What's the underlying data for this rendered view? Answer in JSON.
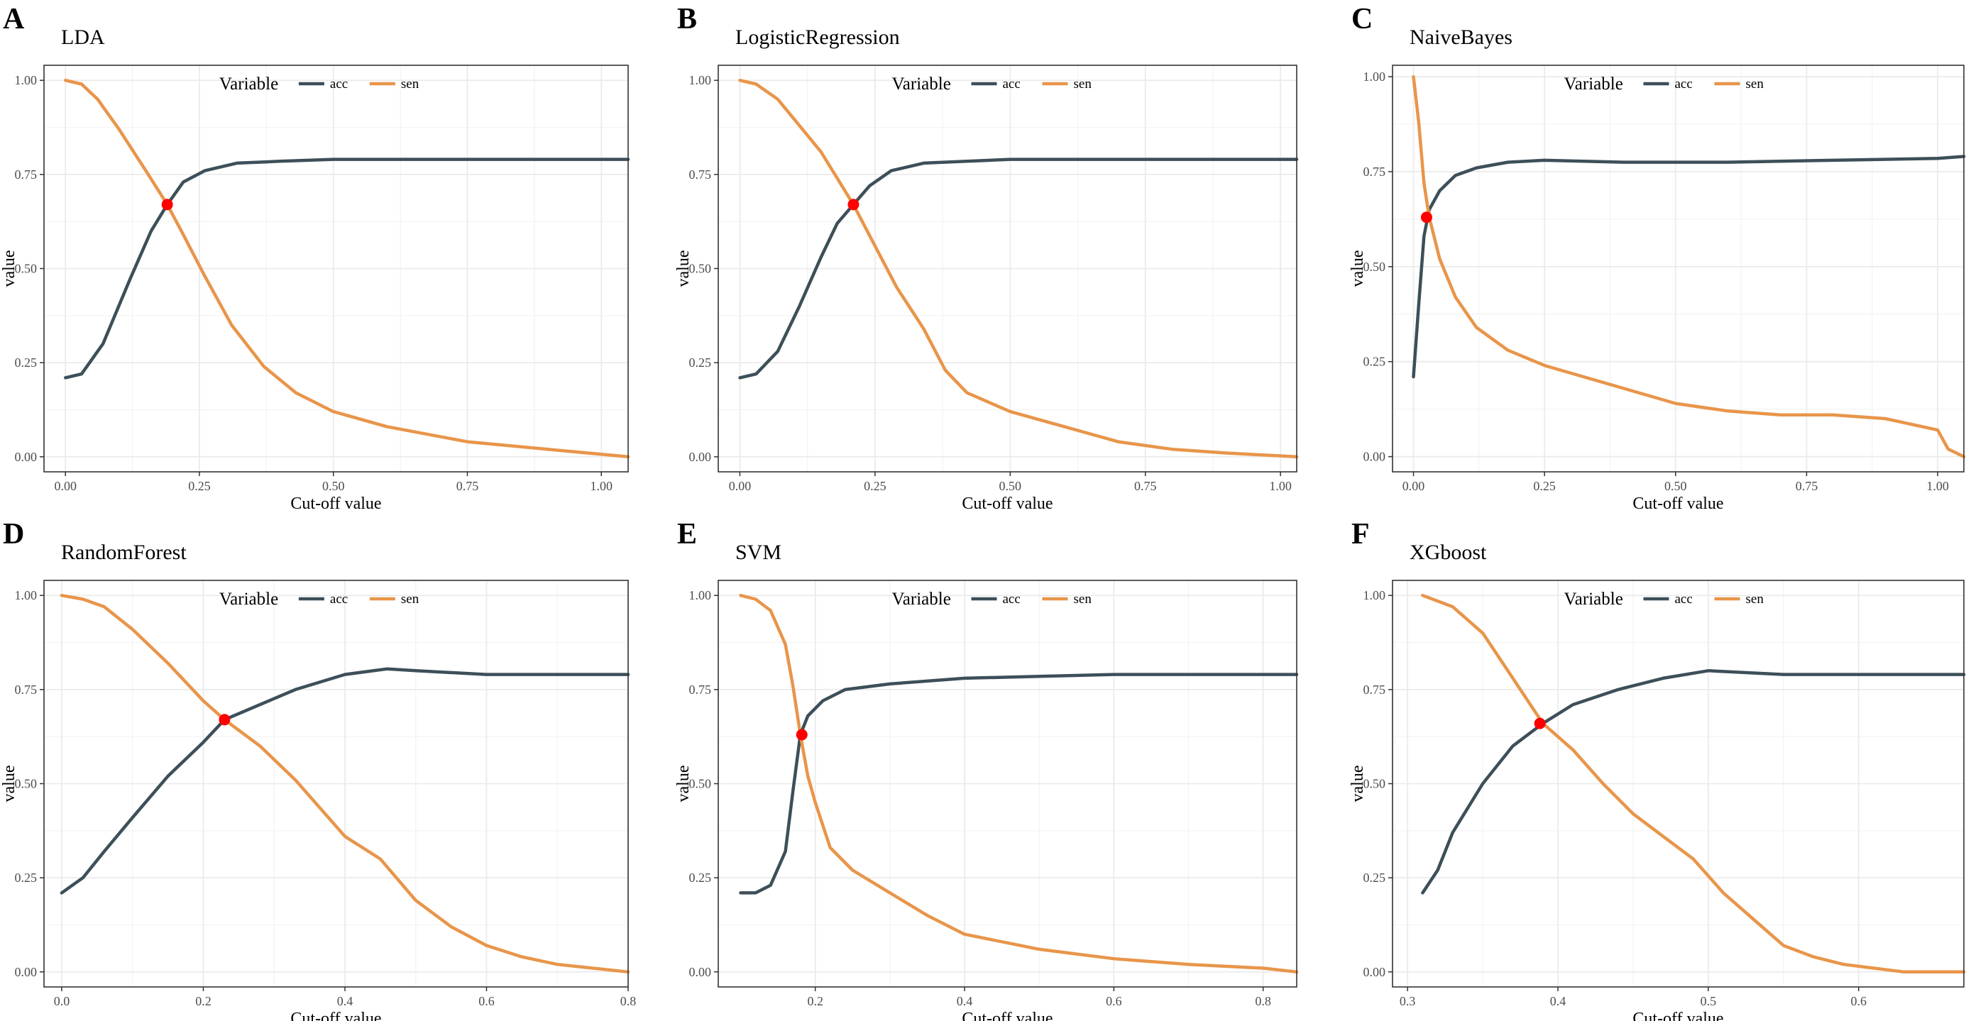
{
  "figure": {
    "colors": {
      "acc": "#3d4f59",
      "sen": "#e8954a",
      "intersection": "#ff0000",
      "panel_border": "#333333",
      "grid": "#ebebeb",
      "text": "#000000"
    },
    "legend": {
      "title": "Variable",
      "labels": [
        "acc",
        "sen"
      ]
    }
  },
  "chart_data": [
    {
      "panel": "A",
      "type": "line",
      "title": "LDA",
      "xlabel": "Cut-off value",
      "ylabel": "value",
      "xlim": [
        -0.04,
        1.05
      ],
      "ylim": [
        -0.04,
        1.04
      ],
      "xticks": [
        0,
        0.25,
        0.5,
        0.75,
        1.0
      ],
      "xtick_labels": [
        "0.00",
        "0.25",
        "0.50",
        "0.75",
        "1.00"
      ],
      "yticks": [
        0,
        0.25,
        0.5,
        0.75,
        1.0
      ],
      "ytick_labels": [
        "0.00",
        "0.25",
        "0.50",
        "0.75",
        "1.00"
      ],
      "grid": true,
      "legend_position": "top-center",
      "series": [
        {
          "name": "acc",
          "x": [
            0,
            0.03,
            0.07,
            0.12,
            0.16,
            0.19,
            0.22,
            0.26,
            0.32,
            0.4,
            0.5,
            0.6,
            0.75,
            0.9,
            1.05
          ],
          "values": [
            0.21,
            0.22,
            0.3,
            0.47,
            0.6,
            0.67,
            0.73,
            0.76,
            0.78,
            0.785,
            0.79,
            0.79,
            0.79,
            0.79,
            0.79
          ]
        },
        {
          "name": "sen",
          "x": [
            0,
            0.03,
            0.06,
            0.1,
            0.15,
            0.19,
            0.22,
            0.26,
            0.31,
            0.37,
            0.43,
            0.5,
            0.6,
            0.75,
            0.9,
            1.05
          ],
          "values": [
            1.0,
            0.99,
            0.95,
            0.87,
            0.76,
            0.67,
            0.59,
            0.48,
            0.35,
            0.24,
            0.17,
            0.12,
            0.08,
            0.04,
            0.02,
            0.0
          ]
        }
      ],
      "intersection": {
        "x": 0.19,
        "y": 0.67
      }
    },
    {
      "panel": "B",
      "type": "line",
      "title": "LogisticRegression",
      "xlabel": "Cut-off value",
      "ylabel": "value",
      "xlim": [
        -0.04,
        1.03
      ],
      "ylim": [
        -0.04,
        1.04
      ],
      "xticks": [
        0,
        0.25,
        0.5,
        0.75,
        1.0
      ],
      "xtick_labels": [
        "0.00",
        "0.25",
        "0.50",
        "0.75",
        "1.00"
      ],
      "yticks": [
        0,
        0.25,
        0.5,
        0.75,
        1.0
      ],
      "ytick_labels": [
        "0.00",
        "0.25",
        "0.50",
        "0.75",
        "1.00"
      ],
      "grid": true,
      "legend_position": "top-center",
      "series": [
        {
          "name": "acc",
          "x": [
            0,
            0.03,
            0.07,
            0.11,
            0.15,
            0.18,
            0.21,
            0.24,
            0.28,
            0.34,
            0.42,
            0.5,
            0.65,
            0.8,
            1.03
          ],
          "values": [
            0.21,
            0.22,
            0.28,
            0.4,
            0.53,
            0.62,
            0.67,
            0.72,
            0.76,
            0.78,
            0.785,
            0.79,
            0.79,
            0.79,
            0.79
          ]
        },
        {
          "name": "sen",
          "x": [
            0,
            0.03,
            0.07,
            0.11,
            0.15,
            0.18,
            0.21,
            0.25,
            0.29,
            0.34,
            0.38,
            0.42,
            0.5,
            0.6,
            0.7,
            0.8,
            0.9,
            1.03
          ],
          "values": [
            1.0,
            0.99,
            0.95,
            0.88,
            0.81,
            0.74,
            0.67,
            0.56,
            0.45,
            0.34,
            0.23,
            0.17,
            0.12,
            0.08,
            0.04,
            0.02,
            0.01,
            0.0
          ]
        }
      ],
      "intersection": {
        "x": 0.21,
        "y": 0.67
      }
    },
    {
      "panel": "C",
      "type": "line",
      "title": "NaiveBayes",
      "xlabel": "Cut-off value",
      "ylabel": "value",
      "xlim": [
        -0.04,
        1.05
      ],
      "ylim": [
        -0.04,
        1.03
      ],
      "xticks": [
        0,
        0.25,
        0.5,
        0.75,
        1.0
      ],
      "xtick_labels": [
        "0.00",
        "0.25",
        "0.50",
        "0.75",
        "1.00"
      ],
      "yticks": [
        0,
        0.25,
        0.5,
        0.75,
        1.0
      ],
      "ytick_labels": [
        "0.00",
        "0.25",
        "0.50",
        "0.75",
        "1.00"
      ],
      "grid": true,
      "legend_position": "top-center",
      "series": [
        {
          "name": "acc",
          "x": [
            0,
            0.01,
            0.02,
            0.03,
            0.05,
            0.08,
            0.12,
            0.18,
            0.25,
            0.4,
            0.6,
            0.8,
            1.0,
            1.05
          ],
          "values": [
            0.21,
            0.4,
            0.58,
            0.65,
            0.7,
            0.74,
            0.76,
            0.775,
            0.78,
            0.775,
            0.775,
            0.78,
            0.785,
            0.79
          ]
        },
        {
          "name": "sen",
          "x": [
            0,
            0.01,
            0.02,
            0.03,
            0.05,
            0.08,
            0.12,
            0.18,
            0.25,
            0.35,
            0.45,
            0.5,
            0.6,
            0.7,
            0.8,
            0.9,
            1.0,
            1.02,
            1.05
          ],
          "values": [
            1.0,
            0.88,
            0.72,
            0.63,
            0.52,
            0.42,
            0.34,
            0.28,
            0.24,
            0.2,
            0.16,
            0.14,
            0.12,
            0.11,
            0.11,
            0.1,
            0.07,
            0.02,
            0.0
          ]
        }
      ],
      "intersection": {
        "x": 0.025,
        "y": 0.63
      }
    },
    {
      "panel": "D",
      "type": "line",
      "title": "RandomForest",
      "xlabel": "Cut-off value",
      "ylabel": "value",
      "xlim": [
        -0.025,
        0.8
      ],
      "ylim": [
        -0.04,
        1.04
      ],
      "xticks": [
        0,
        0.2,
        0.4,
        0.6,
        0.8
      ],
      "xtick_labels": [
        "0.0",
        "0.2",
        "0.4",
        "0.6",
        "0.8"
      ],
      "yticks": [
        0,
        0.25,
        0.5,
        0.75,
        1.0
      ],
      "ytick_labels": [
        "0.00",
        "0.25",
        "0.50",
        "0.75",
        "1.00"
      ],
      "grid": true,
      "legend_position": "top-center",
      "series": [
        {
          "name": "acc",
          "x": [
            0,
            0.03,
            0.06,
            0.1,
            0.15,
            0.2,
            0.23,
            0.28,
            0.33,
            0.4,
            0.46,
            0.5,
            0.6,
            0.7,
            0.8
          ],
          "values": [
            0.21,
            0.25,
            0.32,
            0.41,
            0.52,
            0.61,
            0.67,
            0.71,
            0.75,
            0.79,
            0.805,
            0.8,
            0.79,
            0.79,
            0.79
          ]
        },
        {
          "name": "sen",
          "x": [
            0,
            0.03,
            0.06,
            0.1,
            0.15,
            0.2,
            0.23,
            0.28,
            0.33,
            0.4,
            0.45,
            0.5,
            0.55,
            0.6,
            0.65,
            0.7,
            0.75,
            0.8
          ],
          "values": [
            1.0,
            0.99,
            0.97,
            0.91,
            0.82,
            0.72,
            0.67,
            0.6,
            0.51,
            0.36,
            0.3,
            0.19,
            0.12,
            0.07,
            0.04,
            0.02,
            0.01,
            0.0
          ]
        }
      ],
      "intersection": {
        "x": 0.23,
        "y": 0.67
      }
    },
    {
      "panel": "E",
      "type": "line",
      "title": "SVM",
      "xlabel": "Cut-off value",
      "ylabel": "value",
      "xlim": [
        0.07,
        0.845
      ],
      "ylim": [
        -0.04,
        1.04
      ],
      "xticks": [
        0.2,
        0.4,
        0.6,
        0.8
      ],
      "xtick_labels": [
        "0.2",
        "0.4",
        "0.6",
        "0.8"
      ],
      "yticks": [
        0,
        0.25,
        0.5,
        0.75,
        1.0
      ],
      "ytick_labels": [
        "0.00",
        "0.25",
        "0.50",
        "0.75",
        "1.00"
      ],
      "grid": true,
      "legend_position": "top-center",
      "series": [
        {
          "name": "acc",
          "x": [
            0.1,
            0.12,
            0.14,
            0.16,
            0.17,
            0.18,
            0.19,
            0.21,
            0.24,
            0.3,
            0.4,
            0.5,
            0.6,
            0.7,
            0.845
          ],
          "values": [
            0.21,
            0.21,
            0.23,
            0.32,
            0.48,
            0.63,
            0.68,
            0.72,
            0.75,
            0.765,
            0.78,
            0.785,
            0.79,
            0.79,
            0.79
          ]
        },
        {
          "name": "sen",
          "x": [
            0.1,
            0.12,
            0.14,
            0.16,
            0.17,
            0.18,
            0.19,
            0.2,
            0.22,
            0.25,
            0.3,
            0.35,
            0.4,
            0.5,
            0.6,
            0.7,
            0.8,
            0.845
          ],
          "values": [
            1.0,
            0.99,
            0.96,
            0.87,
            0.76,
            0.63,
            0.52,
            0.45,
            0.33,
            0.27,
            0.21,
            0.15,
            0.1,
            0.06,
            0.035,
            0.02,
            0.01,
            0.0
          ]
        }
      ],
      "intersection": {
        "x": 0.182,
        "y": 0.63
      }
    },
    {
      "panel": "F",
      "type": "line",
      "title": "XGboost",
      "xlabel": "Cut-off value",
      "ylabel": "value",
      "xlim": [
        0.29,
        0.67
      ],
      "ylim": [
        -0.04,
        1.04
      ],
      "xticks": [
        0.3,
        0.4,
        0.5,
        0.6
      ],
      "xtick_labels": [
        "0.3",
        "0.4",
        "0.5",
        "0.6"
      ],
      "yticks": [
        0,
        0.25,
        0.5,
        0.75,
        1.0
      ],
      "ytick_labels": [
        "0.00",
        "0.25",
        "0.50",
        "0.75",
        "1.00"
      ],
      "grid": true,
      "legend_position": "top-center",
      "series": [
        {
          "name": "acc",
          "x": [
            0.31,
            0.32,
            0.33,
            0.35,
            0.37,
            0.39,
            0.41,
            0.44,
            0.47,
            0.5,
            0.55,
            0.6,
            0.67
          ],
          "values": [
            0.21,
            0.27,
            0.37,
            0.5,
            0.6,
            0.66,
            0.71,
            0.75,
            0.78,
            0.8,
            0.79,
            0.79,
            0.79
          ]
        },
        {
          "name": "sen",
          "x": [
            0.31,
            0.33,
            0.35,
            0.37,
            0.39,
            0.41,
            0.43,
            0.45,
            0.47,
            0.49,
            0.51,
            0.53,
            0.55,
            0.57,
            0.59,
            0.61,
            0.63,
            0.67
          ],
          "values": [
            1.0,
            0.97,
            0.9,
            0.78,
            0.66,
            0.59,
            0.5,
            0.42,
            0.36,
            0.3,
            0.21,
            0.14,
            0.07,
            0.04,
            0.02,
            0.01,
            0.0,
            0.0
          ]
        }
      ],
      "intersection": {
        "x": 0.388,
        "y": 0.66
      }
    }
  ]
}
